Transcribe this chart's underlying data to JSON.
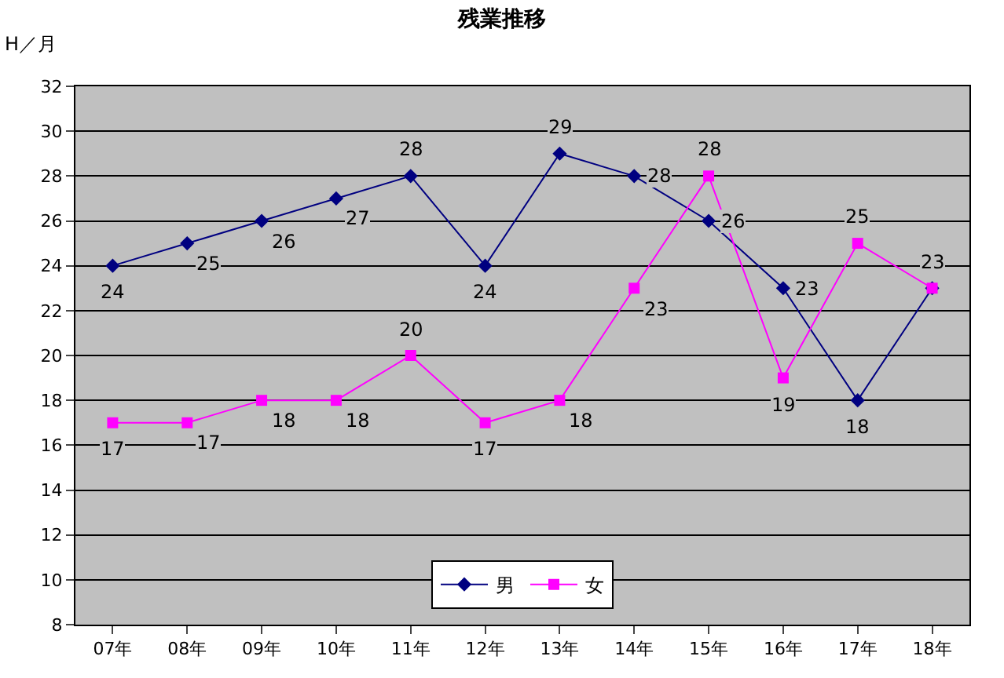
{
  "chart_data": {
    "type": "line",
    "title": "残業推移",
    "ylabel": "H／月",
    "categories": [
      "07年",
      "08年",
      "09年",
      "10年",
      "11年",
      "12年",
      "13年",
      "14年",
      "15年",
      "16年",
      "17年",
      "18年"
    ],
    "series": [
      {
        "name": "男",
        "color": "#000080",
        "marker": "diamond",
        "values": [
          24,
          25,
          26,
          27,
          28,
          24,
          29,
          28,
          26,
          23,
          18,
          23
        ],
        "value_labels": [
          "24",
          "25",
          "26",
          "27",
          "28",
          "24",
          "29",
          "28",
          "26",
          "23",
          "18",
          "23"
        ]
      },
      {
        "name": "女",
        "color": "#ff00ff",
        "marker": "square",
        "values": [
          17,
          17,
          18,
          18,
          20,
          17,
          18,
          23,
          28,
          19,
          25,
          23
        ],
        "value_labels": [
          "17",
          "17",
          "18",
          "18",
          "20",
          "17",
          "18",
          "23",
          "28",
          "19",
          "25",
          null
        ]
      }
    ],
    "ylim": [
      8,
      32
    ],
    "yticks": [
      8,
      10,
      12,
      14,
      16,
      18,
      20,
      22,
      24,
      26,
      28,
      30,
      32
    ],
    "grid": "y",
    "legend": "bottom",
    "line_style": "solid"
  }
}
